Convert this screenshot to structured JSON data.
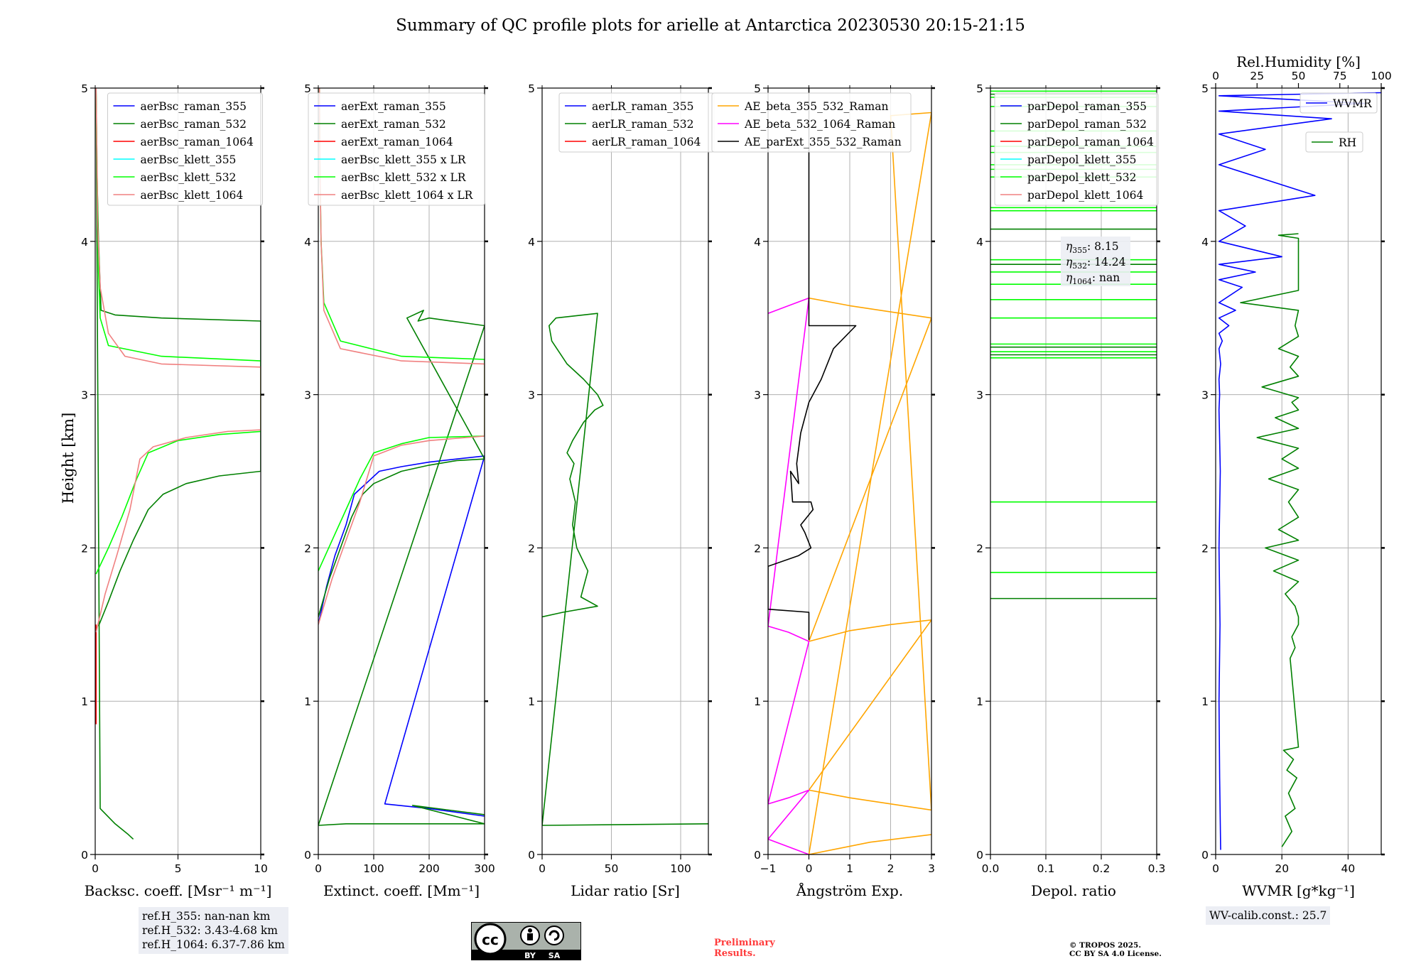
{
  "title": "Summary of QC profile plots for arielle at Antarctica 20230530 20:15-21:15",
  "y_label": "Height [km]",
  "chart_data": [
    {
      "id": "backscatter",
      "type": "line",
      "xlabel": "Backsc. coeff. [Msr⁻¹ m⁻¹]",
      "ylabel": "Height [km]",
      "xlim": [
        0,
        10
      ],
      "ylim": [
        0,
        5
      ],
      "xticks": [
        "0",
        "5",
        "10"
      ],
      "yticks": [
        "0",
        "1",
        "2",
        "3",
        "4",
        "5"
      ],
      "legend_position": "top-right",
      "series": [
        {
          "name": "aerBsc_raman_355",
          "color": "#0000ff",
          "x": [],
          "y": []
        },
        {
          "name": "aerBsc_raman_532",
          "color": "#008000",
          "x": [
            0.2,
            0.8,
            1.5,
            2.3,
            3.2,
            4.1,
            5.5,
            7.5,
            10,
            10,
            4,
            1.2,
            0.35,
            0.2,
            0.1,
            0.05,
            0.3,
            1.2,
            2.0,
            2.3
          ],
          "y": [
            1.49,
            1.65,
            1.85,
            2.05,
            2.25,
            2.35,
            2.42,
            2.47,
            2.5,
            3.48,
            3.5,
            3.52,
            3.55,
            4.0,
            4.5,
            5.0,
            0.3,
            0.2,
            0.13,
            0.1
          ]
        },
        {
          "name": "aerBsc_raman_1064",
          "color": "#ff0000",
          "x": [
            0.05,
            0.05
          ],
          "y": [
            0.85,
            1.5
          ]
        },
        {
          "name": "aerBsc_klett_355",
          "color": "#00ffff",
          "x": [],
          "y": []
        },
        {
          "name": "aerBsc_klett_532",
          "color": "#00ff00",
          "x": [
            0.05,
            0.8,
            1.6,
            2.5,
            3.2,
            5,
            7.5,
            10,
            10,
            4,
            0.8,
            0.3,
            0.2,
            0.15,
            0.1,
            0.05
          ],
          "y": [
            1.83,
            2.0,
            2.2,
            2.45,
            2.62,
            2.7,
            2.74,
            2.76,
            3.22,
            3.25,
            3.32,
            3.5,
            3.8,
            4.2,
            4.6,
            5.0
          ]
        },
        {
          "name": "aerBsc_klett_1064",
          "color": "#f08080",
          "x": [
            0.05,
            0.6,
            1.3,
            2.1,
            2.7,
            3.5,
            5.5,
            8,
            10,
            10,
            4,
            1.8,
            0.8,
            0.3,
            0.15,
            0.1,
            0.05
          ],
          "y": [
            1.45,
            1.7,
            1.95,
            2.25,
            2.58,
            2.66,
            2.72,
            2.76,
            2.77,
            3.18,
            3.2,
            3.25,
            3.4,
            3.7,
            4.1,
            4.6,
            5.0
          ]
        }
      ],
      "annotation": [
        "ref.H_355: nan-nan km",
        "ref.H_532: 3.43-4.68 km",
        "ref.H_1064: 6.37-7.86 km"
      ]
    },
    {
      "id": "extinction",
      "type": "line",
      "xlabel": "Extinct. coeff. [Mm⁻¹]",
      "ylabel": "",
      "xlim": [
        0,
        300
      ],
      "ylim": [
        0,
        5
      ],
      "xticks": [
        "0",
        "100",
        "200",
        "300"
      ],
      "yticks": [
        "0",
        "1",
        "2",
        "3",
        "4",
        "5"
      ],
      "legend_position": "top-left",
      "series": [
        {
          "name": "aerExt_raman_355",
          "color": "#0000ff",
          "x": [
            0,
            15,
            30,
            50,
            65,
            80,
            95,
            110,
            150,
            200,
            250,
            300,
            120,
            200,
            300
          ],
          "y": [
            1.5,
            1.75,
            1.95,
            2.15,
            2.35,
            2.4,
            2.45,
            2.5,
            2.53,
            2.56,
            2.58,
            2.6,
            0.33,
            0.3,
            0.25
          ]
        },
        {
          "name": "aerExt_raman_532",
          "color": "#008000",
          "x": [
            0,
            20,
            40,
            60,
            80,
            100,
            150,
            200,
            250,
            300,
            160,
            190,
            180,
            200,
            300,
            0,
            50,
            150,
            300,
            170,
            300
          ],
          "y": [
            1.55,
            1.8,
            2.0,
            2.2,
            2.35,
            2.42,
            2.5,
            2.54,
            2.57,
            2.58,
            3.5,
            3.55,
            3.48,
            3.5,
            3.45,
            0.19,
            0.2,
            0.2,
            0.2,
            0.32,
            0.26
          ]
        },
        {
          "name": "aerExt_raman_1064",
          "color": "#ff0000",
          "x": [],
          "y": []
        },
        {
          "name": "aerBsc_klett_355 x LR",
          "color": "#00ffff",
          "x": [],
          "y": []
        },
        {
          "name": "aerBsc_klett_532 x LR",
          "color": "#00ff00",
          "x": [
            0,
            25,
            50,
            75,
            100,
            150,
            200,
            300,
            300,
            150,
            40,
            10,
            5,
            3,
            2
          ],
          "y": [
            1.85,
            2.05,
            2.25,
            2.45,
            2.62,
            2.68,
            2.72,
            2.73,
            3.23,
            3.25,
            3.35,
            3.6,
            4.0,
            4.5,
            5.0
          ]
        },
        {
          "name": "aerBsc_klett_1064 x LR",
          "color": "#f08080",
          "x": [
            0,
            25,
            50,
            75,
            100,
            150,
            200,
            300,
            300,
            150,
            40,
            10,
            5,
            3,
            2
          ],
          "y": [
            1.5,
            1.8,
            2.05,
            2.3,
            2.6,
            2.67,
            2.7,
            2.73,
            3.2,
            3.22,
            3.3,
            3.55,
            4.0,
            4.5,
            5.0
          ]
        }
      ]
    },
    {
      "id": "lidar_ratio",
      "type": "line",
      "xlabel": "Lidar ratio [Sr]",
      "ylabel": "",
      "xlim": [
        0,
        120
      ],
      "ylim": [
        0,
        5
      ],
      "xticks": [
        "0",
        "50",
        "100"
      ],
      "yticks": [
        "0",
        "1",
        "2",
        "3",
        "4",
        "5"
      ],
      "legend_position": "top-center",
      "series": [
        {
          "name": "aerLR_raman_355",
          "color": "#0000ff",
          "x": [],
          "y": []
        },
        {
          "name": "aerLR_raman_532",
          "color": "#008000",
          "x": [
            0,
            15,
            40,
            28,
            33,
            25,
            22,
            24,
            20,
            23,
            18,
            22,
            30,
            38,
            44,
            40,
            30,
            18,
            7,
            5,
            10,
            40,
            0,
            120
          ],
          "y": [
            1.55,
            1.58,
            1.62,
            1.68,
            1.85,
            2.0,
            2.15,
            2.3,
            2.45,
            2.55,
            2.62,
            2.7,
            2.82,
            2.9,
            2.93,
            3.0,
            3.1,
            3.2,
            3.35,
            3.45,
            3.5,
            3.53,
            0.19,
            0.2
          ]
        },
        {
          "name": "aerLR_raman_1064",
          "color": "#ff0000",
          "x": [],
          "y": []
        }
      ]
    },
    {
      "id": "angstrom",
      "type": "line",
      "xlabel": "Ångström Exp.",
      "ylabel": "",
      "xlim": [
        -1,
        3
      ],
      "ylim": [
        0,
        5
      ],
      "xticks": [
        "−1",
        "0",
        "1",
        "2",
        "3"
      ],
      "yticks": [
        "0",
        "1",
        "2",
        "3",
        "4",
        "5"
      ],
      "legend_position": "top-center",
      "series": [
        {
          "name": "AE_beta_355_532_Raman",
          "color": "#ffa500",
          "x": [
            0,
            1,
            2,
            3,
            0,
            1,
            2,
            3,
            0,
            1,
            2,
            3,
            2,
            3,
            0,
            1.5,
            3
          ],
          "y": [
            3.63,
            3.58,
            3.54,
            3.5,
            1.39,
            1.46,
            1.5,
            1.53,
            0.42,
            0.37,
            0.33,
            0.29,
            4.82,
            4.84,
            0.0,
            0.08,
            0.13
          ]
        },
        {
          "name": "AE_beta_532_1064_Raman",
          "color": "#ff00ff",
          "x": [
            -1,
            -0.5,
            0,
            -1,
            -0.5,
            0,
            -1,
            -0.5,
            0,
            -1,
            0
          ],
          "y": [
            3.53,
            3.58,
            3.63,
            1.49,
            1.45,
            1.39,
            0.33,
            0.37,
            0.42,
            0.1,
            0.0
          ]
        },
        {
          "name": "AE_parExt_355_532_Raman",
          "color": "#000000",
          "x": [
            0,
            0,
            1.15,
            0.6,
            0.3,
            0,
            -0.2,
            -0.3,
            -0.25,
            -0.45,
            -0.4,
            0.05,
            0.1,
            -0.2,
            -0.1,
            0.05,
            -0.25,
            -1,
            -1,
            0,
            0
          ],
          "y": [
            5.0,
            3.45,
            3.45,
            3.3,
            3.1,
            2.95,
            2.75,
            2.55,
            2.42,
            2.5,
            2.3,
            2.3,
            2.25,
            2.15,
            2.1,
            2.0,
            1.95,
            1.88,
            1.6,
            1.58,
            1.4
          ]
        }
      ]
    },
    {
      "id": "depol",
      "type": "line",
      "xlabel": "Depol. ratio",
      "ylabel": "",
      "xlim": [
        0,
        0.3
      ],
      "ylim": [
        0,
        5
      ],
      "xticks": [
        "0.0",
        "0.1",
        "0.2",
        "0.3"
      ],
      "yticks": [
        "0",
        "1",
        "2",
        "3",
        "4",
        "5"
      ],
      "legend_position": "top-left",
      "series": [
        {
          "name": "parDepol_raman_355",
          "color": "#0000ff",
          "x": [],
          "y": []
        },
        {
          "name": "parDepol_raman_532",
          "color": "#008000",
          "y_levels": [
            1.67,
            3.26,
            3.31,
            3.85,
            4.08,
            4.96
          ],
          "x_range": [
            0,
            0.3
          ]
        },
        {
          "name": "parDepol_raman_1064",
          "color": "#ff0000",
          "x": [],
          "y": []
        },
        {
          "name": "parDepol_klett_355",
          "color": "#00ffff",
          "x": [],
          "y": []
        },
        {
          "name": "parDepol_klett_532",
          "color": "#00ff00",
          "y_levels": [
            1.84,
            2.3,
            3.24,
            3.28,
            3.33,
            3.5,
            3.62,
            3.72,
            3.8,
            3.88,
            4.2,
            4.22,
            4.42,
            4.47,
            4.5,
            4.58,
            4.62,
            4.72,
            4.88,
            4.94,
            4.98
          ],
          "x_range": [
            0,
            0.3
          ]
        },
        {
          "name": "parDepol_klett_1064",
          "color": "#f08080",
          "x": [],
          "y": []
        }
      ],
      "annotation": [
        "η355: 8.15",
        "η532: 14.24",
        "η1064: nan"
      ]
    },
    {
      "id": "wvmr",
      "type": "line",
      "xlabel": "WVMR [g*kg⁻¹]",
      "ylabel": "",
      "xlim": [
        0,
        50
      ],
      "ylim": [
        0,
        5
      ],
      "xticks": [
        "0",
        "20",
        "40"
      ],
      "top_xlabel": "Rel.Humidity [%]",
      "top_xlim": [
        0,
        100
      ],
      "top_xticks": [
        "0",
        "25",
        "50",
        "75",
        "100"
      ],
      "yticks": [
        "0",
        "1",
        "2",
        "3",
        "4",
        "5"
      ],
      "legend_position": "top-right",
      "series": [
        {
          "name": "WVMR",
          "color": "#0000ff",
          "x": [
            1.5,
            1.2,
            1.0,
            1.3,
            1.0,
            1.4,
            1.0,
            1.2,
            1.0,
            1.5,
            1.0,
            2.0,
            1.0,
            4.0,
            1.0,
            6.0,
            1.0,
            8.0,
            1.0,
            12.0,
            1.0,
            20.0,
            1.0,
            9.0,
            1.0,
            30.0,
            1.0,
            15.0,
            1.0,
            35.0,
            1.0,
            45.0,
            1.0,
            50.0
          ],
          "y": [
            0.03,
            0.5,
            1.0,
            1.5,
            2.0,
            2.5,
            2.9,
            3.0,
            3.1,
            3.2,
            3.3,
            3.35,
            3.4,
            3.45,
            3.5,
            3.55,
            3.6,
            3.7,
            3.75,
            3.8,
            3.85,
            3.9,
            4.0,
            4.1,
            4.2,
            4.3,
            4.5,
            4.6,
            4.7,
            4.8,
            4.85,
            4.9,
            4.95,
            4.97
          ]
        },
        {
          "name": "RH",
          "color": "#008000",
          "rh_x": [
            40,
            46,
            42,
            48,
            44,
            49,
            43,
            47,
            41,
            50,
            45,
            48,
            46,
            50,
            50,
            48,
            42,
            50,
            35,
            50,
            30,
            50,
            38,
            50,
            44,
            50,
            32,
            50,
            40,
            50,
            25,
            50,
            36,
            50,
            46,
            50,
            28,
            50,
            45,
            50,
            38,
            50,
            48,
            50,
            15,
            50,
            50,
            38,
            50
          ],
          "y": [
            0.05,
            0.15,
            0.25,
            0.3,
            0.4,
            0.5,
            0.55,
            0.62,
            0.68,
            0.7,
            1.28,
            1.35,
            1.42,
            1.5,
            1.55,
            1.62,
            1.7,
            1.78,
            1.85,
            1.92,
            2.0,
            2.05,
            2.12,
            2.2,
            2.3,
            2.38,
            2.45,
            2.52,
            2.58,
            2.65,
            2.72,
            2.78,
            2.85,
            2.9,
            2.95,
            2.98,
            3.05,
            3.12,
            3.18,
            3.25,
            3.3,
            3.38,
            3.45,
            3.55,
            3.6,
            3.68,
            4.02,
            4.04,
            4.05
          ]
        }
      ],
      "annotation": [
        "WV-calib.const.: 25.7"
      ]
    }
  ],
  "notes": {
    "preliminary": [
      "Preliminary",
      "Results."
    ],
    "copyright": [
      "© TROPOS 2025.",
      "CC BY SA 4.0 License."
    ],
    "cc_badge": {
      "logo": "cc",
      "by": "BY",
      "sa": "SA"
    }
  }
}
